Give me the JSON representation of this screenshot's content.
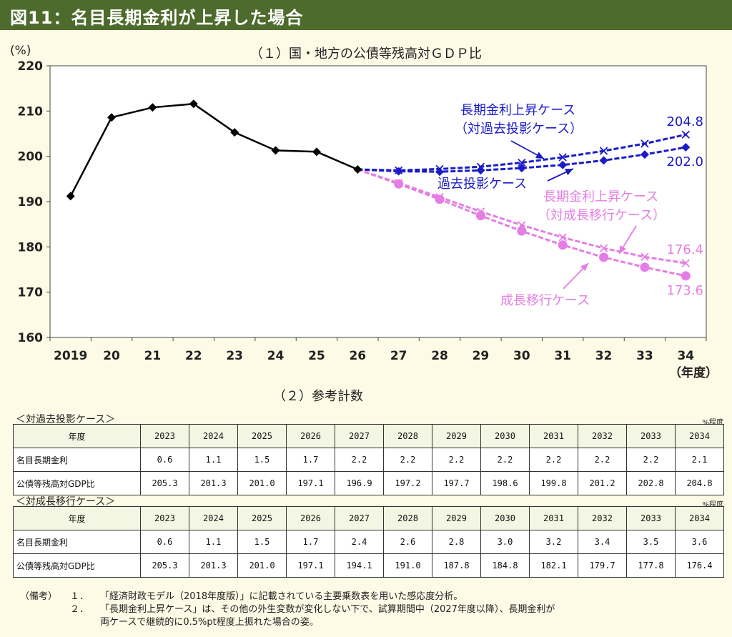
{
  "header": {
    "title": "図11：名目長期金利が上昇した場合"
  },
  "chart_section": {
    "title": "（１）国・地方の公債等残高対ＧＤＰ比"
  },
  "chart_data": {
    "type": "line",
    "title": "（１）国・地方の公債等残高対ＧＤＰ比",
    "yunit": "(%)",
    "xunit": "（年度）",
    "ylim": [
      160,
      220
    ],
    "yticks": [
      160,
      170,
      180,
      190,
      200,
      210,
      220
    ],
    "x": [
      2019,
      2020,
      2021,
      2022,
      2023,
      2024,
      2025,
      2026,
      2027,
      2028,
      2029,
      2030,
      2031,
      2032,
      2033,
      2034
    ],
    "xtick_labels": [
      "2019",
      "20",
      "21",
      "22",
      "23",
      "24",
      "25",
      "26",
      "27",
      "28",
      "29",
      "30",
      "31",
      "32",
      "33",
      "34"
    ],
    "grid": false,
    "series": [
      {
        "key": "history",
        "color": "#000000",
        "marker": "diamond",
        "dashed": false,
        "x": [
          2019,
          2020,
          2021,
          2022,
          2023,
          2024,
          2025,
          2026
        ],
        "values": [
          191.2,
          208.6,
          210.8,
          211.6,
          205.3,
          201.3,
          201.0,
          197.1
        ]
      },
      {
        "key": "past_rise",
        "color": "#1b1bc8",
        "marker": "x",
        "dashed": true,
        "x": [
          2026,
          2027,
          2028,
          2029,
          2030,
          2031,
          2032,
          2033,
          2034
        ],
        "values": [
          197.1,
          196.9,
          197.2,
          197.7,
          198.6,
          199.8,
          201.2,
          202.8,
          204.8
        ]
      },
      {
        "key": "past",
        "color": "#1b1bc8",
        "marker": "diamond",
        "dashed": true,
        "x": [
          2026,
          2027,
          2028,
          2029,
          2030,
          2031,
          2032,
          2033,
          2034
        ],
        "values": [
          197.1,
          196.7,
          196.6,
          196.9,
          197.4,
          198.1,
          199.1,
          200.4,
          202.0
        ]
      },
      {
        "key": "growth_rise",
        "color": "#e47ee4",
        "marker": "x",
        "dashed": true,
        "x": [
          2026,
          2027,
          2028,
          2029,
          2030,
          2031,
          2032,
          2033,
          2034
        ],
        "values": [
          197.1,
          194.1,
          191.0,
          187.8,
          184.8,
          182.1,
          179.7,
          177.8,
          176.4
        ]
      },
      {
        "key": "growth",
        "color": "#e47ee4",
        "marker": "circle",
        "dashed": true,
        "x": [
          2026,
          2027,
          2028,
          2029,
          2030,
          2031,
          2032,
          2033,
          2034
        ],
        "values": [
          197.1,
          193.9,
          190.5,
          186.9,
          183.5,
          180.4,
          177.7,
          175.5,
          173.6
        ]
      }
    ],
    "annotations": {
      "past_rise_line1": "長期金利上昇ケース",
      "past_rise_line2": "（対過去投影ケース）",
      "past": "過去投影ケース",
      "growth_rise_line1": "長期金利上昇ケース",
      "growth_rise_line2": "（対成長移行ケース）",
      "growth": "成長移行ケース",
      "end_past_rise": "204.8",
      "end_past": "202.0",
      "end_growth_rise": "176.4",
      "end_growth": "173.6"
    }
  },
  "table_section": {
    "title": "（２）参考計数"
  },
  "tables": [
    {
      "case_label": "＜対過去投影ケース＞",
      "unit": "%程度",
      "header_label": "年度",
      "years": [
        "2023",
        "2024",
        "2025",
        "2026",
        "2027",
        "2028",
        "2029",
        "2030",
        "2031",
        "2032",
        "2033",
        "2034"
      ],
      "rows": [
        {
          "label": "名目長期金利",
          "values": [
            "0.6",
            "1.1",
            "1.5",
            "1.7",
            "2.2",
            "2.2",
            "2.2",
            "2.2",
            "2.2",
            "2.2",
            "2.2",
            "2.1"
          ]
        },
        {
          "label": "公債等残高対GDP比",
          "values": [
            "205.3",
            "201.3",
            "201.0",
            "197.1",
            "196.9",
            "197.2",
            "197.7",
            "198.6",
            "199.8",
            "201.2",
            "202.8",
            "204.8"
          ]
        }
      ]
    },
    {
      "case_label": "＜対成長移行ケース＞",
      "unit": "%程度",
      "header_label": "年度",
      "years": [
        "2023",
        "2024",
        "2025",
        "2026",
        "2027",
        "2028",
        "2029",
        "2030",
        "2031",
        "2032",
        "2033",
        "2034"
      ],
      "rows": [
        {
          "label": "名目長期金利",
          "values": [
            "0.6",
            "1.1",
            "1.5",
            "1.7",
            "2.4",
            "2.6",
            "2.8",
            "3.0",
            "3.2",
            "3.4",
            "3.5",
            "3.6"
          ]
        },
        {
          "label": "公債等残高対GDP比",
          "values": [
            "205.3",
            "201.3",
            "201.0",
            "197.1",
            "194.1",
            "191.0",
            "187.8",
            "184.8",
            "182.1",
            "179.7",
            "177.8",
            "176.4"
          ]
        }
      ]
    }
  ],
  "notes": {
    "label": "（備考）",
    "items": [
      {
        "num": "１．",
        "text": "「経済財政モデル（2018年度版）」に記載されている主要乗数表を用いた感応度分析。"
      },
      {
        "num": "２．",
        "text": "「長期金利上昇ケース」は、その他の外生変数が変化しない下で、試算期間中（2027年度以降）、長期金利が",
        "text2": "両ケースで継続的に0.5%pt程度上振れた場合の姿。"
      }
    ]
  }
}
